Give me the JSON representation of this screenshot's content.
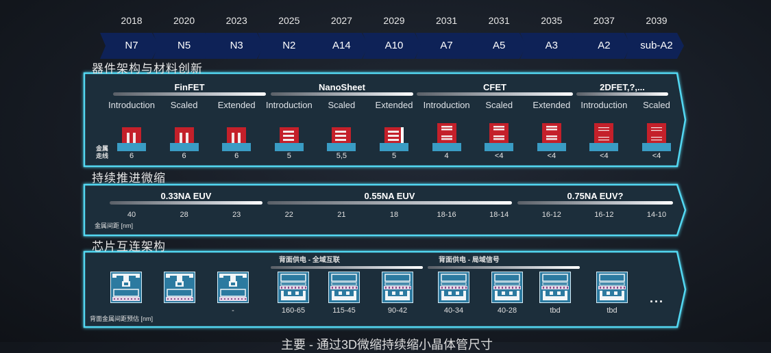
{
  "timeline": {
    "years": [
      "2018",
      "2020",
      "2023",
      "2025",
      "2027",
      "2029",
      "2031",
      "2031",
      "2035",
      "2037",
      "2039"
    ],
    "nodes": [
      "N7",
      "N5",
      "N3",
      "N2",
      "A14",
      "A10",
      "A7",
      "A5",
      "A3",
      "A2",
      "sub-A2"
    ],
    "chevron_color": "#0e2257"
  },
  "device": {
    "title": "器件架构与材料创新",
    "groups": [
      "FinFET",
      "NanoSheet",
      "CFET",
      "2DFET,?,..."
    ],
    "stages": [
      "Introduction",
      "Scaled",
      "Extended",
      "Introduction",
      "Scaled",
      "Extended",
      "Introduction",
      "Scaled",
      "Extended",
      "Introduction",
      "Scaled"
    ],
    "icon_types": [
      "finfet",
      "finfet",
      "finfet",
      "nanosheet",
      "nanosheet",
      "forksheet",
      "cfet",
      "cfet",
      "cfet",
      "2dfet",
      "2dfet"
    ],
    "row_label": "金属\n走线",
    "metal_tracks": [
      "6",
      "6",
      "6",
      "5",
      "5,5",
      "5",
      "4",
      "<4",
      "<4",
      "<4",
      "<4"
    ],
    "device_color": "#c4202a",
    "base_color": "#3a9cc4"
  },
  "scaling": {
    "title": "持续推进微缩",
    "groups": [
      "0.33NA EUV",
      "0.55NA EUV",
      "0.75NA EUV?"
    ],
    "row_label": "金属间距 [nm]",
    "pitches": [
      "40",
      "28",
      "23",
      "22",
      "21",
      "18",
      "18-16",
      "18-14",
      "16-12",
      "16-12",
      "14-10"
    ]
  },
  "interconnect": {
    "title": "芯片互连架构",
    "groups": [
      "背面供电 - 全域互联",
      "背面供电 - 局域信号"
    ],
    "row_label": "背面金属间距预估 [nm]",
    "icon_types": [
      "frontside",
      "frontside",
      "frontside",
      "backside",
      "backside",
      "backside",
      "backside",
      "backside",
      "backside",
      "backside"
    ],
    "values": [
      "",
      "",
      "-",
      "160-65",
      "115-45",
      "90-42",
      "40-34",
      "40-28",
      "tbd",
      "tbd"
    ],
    "more": "..."
  },
  "caption": "主要 - 通过3D微缩持续缩小晶体管尺寸",
  "colors": {
    "frame": "#4fd6f0",
    "panel": "#1e3040"
  }
}
